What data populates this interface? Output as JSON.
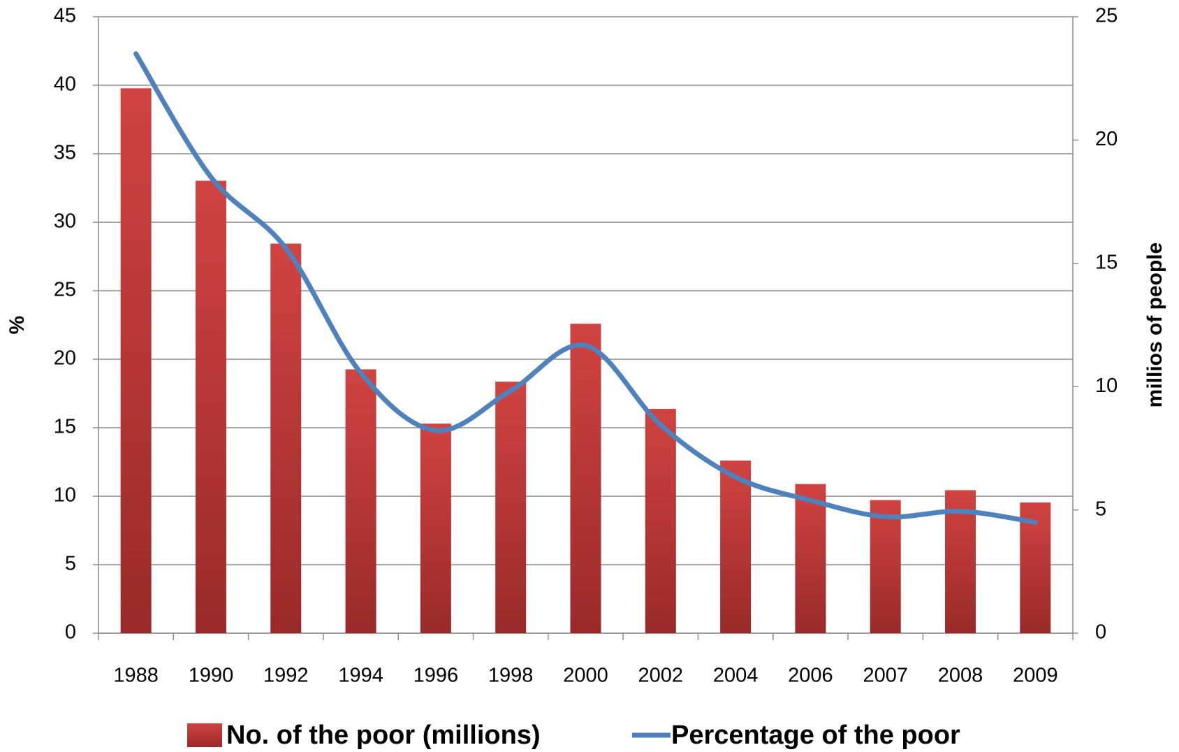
{
  "chart_data": {
    "type": "bar_line",
    "categories": [
      "1988",
      "1990",
      "1992",
      "1994",
      "1996",
      "1998",
      "2000",
      "2002",
      "2004",
      "2006",
      "2007",
      "2008",
      "2009"
    ],
    "series": [
      {
        "name": "No. of the poor (millions)",
        "type": "bar",
        "axis": "y2",
        "color": "#c43a38",
        "values": [
          22.1,
          18.35,
          15.8,
          10.7,
          8.5,
          10.2,
          12.55,
          9.1,
          7.0,
          6.05,
          5.4,
          5.8,
          5.3
        ]
      },
      {
        "name": "Percentage of the poor",
        "type": "line",
        "axis": "y",
        "color": "#4f81bd",
        "values": [
          42.3,
          33.3,
          28.1,
          19.0,
          14.8,
          17.7,
          21.0,
          15.2,
          11.4,
          9.7,
          8.5,
          8.9,
          8.1
        ]
      }
    ],
    "ylabel": "%",
    "y2label": "millios of people",
    "ylim": [
      0,
      45
    ],
    "yticks": [
      0,
      5,
      10,
      15,
      20,
      25,
      30,
      35,
      40,
      45
    ],
    "y2lim": [
      0,
      25
    ],
    "y2ticks": [
      0,
      5,
      10,
      15,
      20,
      25
    ],
    "grid": true,
    "legend": "bottom"
  }
}
